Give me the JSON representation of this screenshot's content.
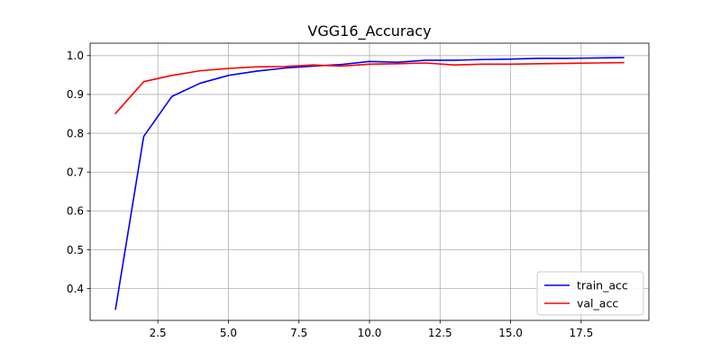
{
  "chart_data": {
    "type": "line",
    "title": "VGG16_Accuracy",
    "xlabel": "",
    "ylabel": "",
    "xlim": [
      0.1,
      19.9
    ],
    "ylim": [
      0.318,
      1.032
    ],
    "grid": true,
    "legend_position": "lower-right",
    "x_ticks": [
      2.5,
      5.0,
      7.5,
      10.0,
      12.5,
      15.0,
      17.5
    ],
    "x_tick_labels": [
      "2.5",
      "5.0",
      "7.5",
      "10.0",
      "12.5",
      "15.0",
      "17.5"
    ],
    "y_ticks": [
      0.4,
      0.5,
      0.6,
      0.7,
      0.8,
      0.9,
      1.0
    ],
    "y_tick_labels": [
      "0.4",
      "0.5",
      "0.6",
      "0.7",
      "0.8",
      "0.9",
      "1.0"
    ],
    "x": [
      1,
      2,
      3,
      4,
      5,
      6,
      7,
      8,
      9,
      10,
      11,
      12,
      13,
      14,
      15,
      16,
      17,
      18,
      19
    ],
    "series": [
      {
        "name": "train_acc",
        "color": "#0000ff",
        "values": [
          0.347,
          0.792,
          0.895,
          0.929,
          0.949,
          0.96,
          0.968,
          0.973,
          0.977,
          0.985,
          0.983,
          0.988,
          0.988,
          0.99,
          0.991,
          0.993,
          0.993,
          0.994,
          0.995
        ]
      },
      {
        "name": "val_acc",
        "color": "#ff0000",
        "values": [
          0.851,
          0.933,
          0.949,
          0.961,
          0.967,
          0.971,
          0.972,
          0.976,
          0.973,
          0.978,
          0.979,
          0.981,
          0.976,
          0.978,
          0.978,
          0.979,
          0.98,
          0.981,
          0.982
        ]
      }
    ]
  }
}
